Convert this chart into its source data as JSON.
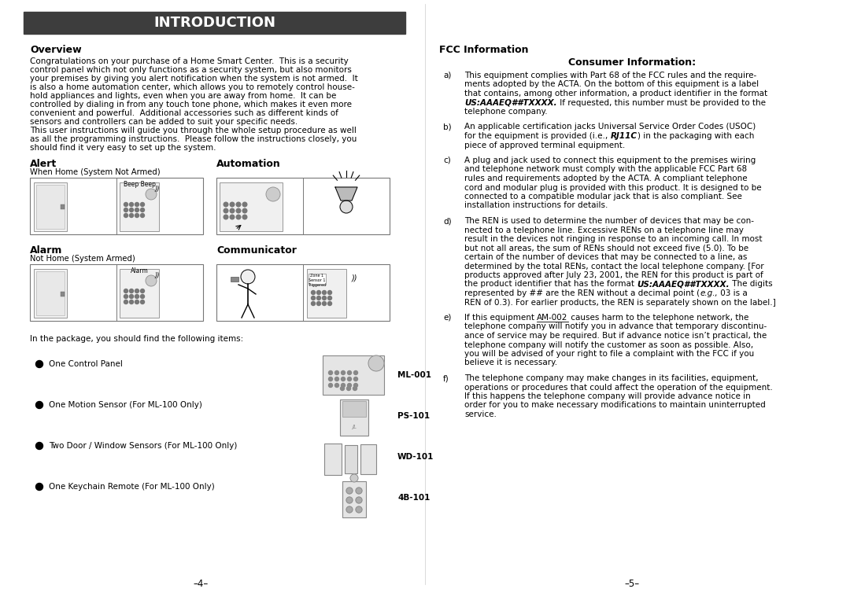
{
  "title": "INTRODUCTION",
  "title_bg": "#3d3d3d",
  "title_color": "#ffffff",
  "bg_color": "#ffffff",
  "left_col": {
    "overview_heading": "Overview",
    "alert_heading": "Alert",
    "alert_sub": "When Home (System Not Armed)",
    "alarm_heading": "Alarm",
    "alarm_sub": "Not Home (System Armed)",
    "automation_heading": "Automation",
    "communicator_heading": "Communicator",
    "package_text": "In the package, you should find the following items:",
    "items": [
      {
        "bullet": "One Control Panel",
        "label": "ML-001"
      },
      {
        "bullet": "One Motion Sensor (For ML-100 Only)",
        "label": "PS-101"
      },
      {
        "bullet": "Two Door / Window Sensors (For ML-100 Only)",
        "label": "WD-101"
      },
      {
        "bullet": "One Keychain Remote (For ML-100 Only)",
        "label": "4B-101"
      }
    ],
    "page_num": "–4–",
    "overview_lines": [
      "Congratulations on your purchase of a Home Smart Center.  This is a security",
      "control panel which not only functions as a security system, but also monitors",
      "your premises by giving you alert notification when the system is not armed.  It",
      "is also a home automation center, which allows you to remotely control house-",
      "hold appliances and lights, even when you are away from home.  It can be",
      "controlled by dialing in from any touch tone phone, which makes it even more",
      "convenient and powerful.  Additional accessories such as different kinds of",
      "sensors and controllers can be added to suit your specific needs.",
      "This user instructions will guide you through the whole setup procedure as well",
      "as all the programming instructions.  Please follow the instructions closely, you",
      "should find it very easy to set up the system."
    ]
  },
  "right_col": {
    "fcc_heading": "FCC Information",
    "consumer_heading": "Consumer Information:",
    "page_num": "–5–",
    "items": [
      {
        "label": "a)",
        "segments": [
          {
            "text": "This equipment complies with Part 68 of the FCC rules and the require-\nments adopted by the ACTA. On the bottom of this equipment is a label\nthat contains, among other information, a product identifier in the format\n",
            "bold": false,
            "italic": false
          },
          {
            "text": "US:AAAEQ##TXXXX.",
            "bold": true,
            "italic": true
          },
          {
            "text": " If requested, this number must be provided to the\ntelephone company.",
            "bold": false,
            "italic": false
          }
        ]
      },
      {
        "label": "b)",
        "segments": [
          {
            "text": "An applicable certification jacks Universal Service Order Codes (USOC)\nfor the equipment is provided (i.e., ",
            "bold": false,
            "italic": false
          },
          {
            "text": "RJ11C",
            "bold": true,
            "italic": true
          },
          {
            "text": ") in the packaging with each\npiece of approved terminal equipment.",
            "bold": false,
            "italic": false
          }
        ]
      },
      {
        "label": "c)",
        "segments": [
          {
            "text": "A plug and jack used to connect this equipment to the premises wiring\nand telephone network must comply with the applicable FCC Part 68\nrules and requirements adopted by the ACTA. A compliant telephone\ncord and modular plug is provided with this product. It is designed to be\nconnected to a compatible modular jack that is also compliant. See\ninstallation instructions for details.",
            "bold": false,
            "italic": false
          }
        ]
      },
      {
        "label": "d)",
        "segments": [
          {
            "text": "The REN is used to determine the number of devices that may be con-\nnected to a telephone line. Excessive RENs on a telephone line may\nresult in the devices not ringing in response to an incoming call. In most\nbut not all areas, the sum of RENs should not exceed five (5.0). To be\ncertain of the number of devices that may be connected to a line, as\ndetermined by the total RENs, contact the local telephone company. [For\nproducts approved after July 23, 2001, the REN for this product is part of\nthe product identifier that has the format ",
            "bold": false,
            "italic": false
          },
          {
            "text": "US:AAAEQ##TXXXX.",
            "bold": true,
            "italic": true
          },
          {
            "text": " The digits\nrepresented by ## are the REN without a decimal point (",
            "bold": false,
            "italic": false
          },
          {
            "text": "e.g.,",
            "bold": false,
            "italic": true
          },
          {
            "text": " 03 is a\nREN of 0.3). For earlier products, the REN is separately shown on the label.]",
            "bold": false,
            "italic": false
          }
        ]
      },
      {
        "label": "e)",
        "segments": [
          {
            "text": "If this equipment ",
            "bold": false,
            "italic": false
          },
          {
            "text": "AM-002",
            "bold": false,
            "italic": false,
            "underline": true
          },
          {
            "text": " causes harm to the telephone network, the\ntelephone company will notify you in advance that temporary discontinu-\nance of service may be required. But if advance notice isn’t practical, the\ntelephone company will notify the customer as soon as possible. Also,\nyou will be advised of your right to file a complaint with the FCC if you\nbelieve it is necessary.",
            "bold": false,
            "italic": false
          }
        ]
      },
      {
        "label": "f)",
        "segments": [
          {
            "text": "The telephone company may make changes in its facilities, equipment,\noperations or procedures that could affect the operation of the equipment.\nIf this happens the telephone company will provide advance notice in\norder for you to make necessary modifications to maintain uninterrupted\nservice.",
            "bold": false,
            "italic": false
          }
        ]
      }
    ]
  }
}
